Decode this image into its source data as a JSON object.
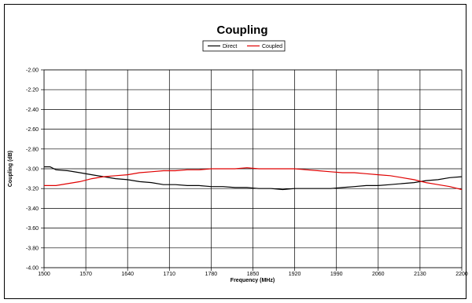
{
  "chart_data": {
    "type": "line",
    "title": "Coupling",
    "xlabel": "Frequency (MHz)",
    "ylabel": "Coupling (dB)",
    "xlim": [
      1500,
      2200
    ],
    "ylim": [
      -4.0,
      -2.0
    ],
    "x_ticks": [
      "1500",
      "1570",
      "1640",
      "1710",
      "1780",
      "1850",
      "1920",
      "1990",
      "2060",
      "2130",
      "2200"
    ],
    "y_ticks": [
      "-2.00",
      "-2.20",
      "-2.40",
      "-2.60",
      "-2.80",
      "-3.00",
      "-3.20",
      "-3.40",
      "-3.60",
      "-3.80",
      "-4.00"
    ],
    "grid": true,
    "legend_position": "top",
    "series": [
      {
        "name": "Direct",
        "color": "#000000",
        "points": [
          [
            1500,
            -2.98
          ],
          [
            1510,
            -2.98
          ],
          [
            1520,
            -3.01
          ],
          [
            1540,
            -3.02
          ],
          [
            1560,
            -3.04
          ],
          [
            1580,
            -3.06
          ],
          [
            1600,
            -3.08
          ],
          [
            1620,
            -3.1
          ],
          [
            1640,
            -3.11
          ],
          [
            1660,
            -3.13
          ],
          [
            1680,
            -3.14
          ],
          [
            1700,
            -3.16
          ],
          [
            1720,
            -3.16
          ],
          [
            1740,
            -3.17
          ],
          [
            1760,
            -3.17
          ],
          [
            1780,
            -3.18
          ],
          [
            1800,
            -3.18
          ],
          [
            1820,
            -3.19
          ],
          [
            1840,
            -3.19
          ],
          [
            1860,
            -3.2
          ],
          [
            1880,
            -3.2
          ],
          [
            1900,
            -3.21
          ],
          [
            1920,
            -3.2
          ],
          [
            1940,
            -3.2
          ],
          [
            1960,
            -3.2
          ],
          [
            1980,
            -3.2
          ],
          [
            2000,
            -3.19
          ],
          [
            2020,
            -3.18
          ],
          [
            2040,
            -3.17
          ],
          [
            2060,
            -3.17
          ],
          [
            2080,
            -3.16
          ],
          [
            2100,
            -3.15
          ],
          [
            2120,
            -3.14
          ],
          [
            2140,
            -3.12
          ],
          [
            2160,
            -3.11
          ],
          [
            2180,
            -3.09
          ],
          [
            2200,
            -3.08
          ]
        ]
      },
      {
        "name": "Coupled",
        "color": "#e00000",
        "points": [
          [
            1500,
            -3.17
          ],
          [
            1520,
            -3.17
          ],
          [
            1540,
            -3.15
          ],
          [
            1560,
            -3.13
          ],
          [
            1580,
            -3.1
          ],
          [
            1600,
            -3.08
          ],
          [
            1620,
            -3.07
          ],
          [
            1640,
            -3.06
          ],
          [
            1660,
            -3.04
          ],
          [
            1680,
            -3.03
          ],
          [
            1700,
            -3.02
          ],
          [
            1720,
            -3.02
          ],
          [
            1740,
            -3.01
          ],
          [
            1760,
            -3.01
          ],
          [
            1780,
            -3.0
          ],
          [
            1800,
            -3.0
          ],
          [
            1820,
            -3.0
          ],
          [
            1840,
            -2.99
          ],
          [
            1860,
            -3.0
          ],
          [
            1880,
            -3.0
          ],
          [
            1900,
            -3.0
          ],
          [
            1920,
            -3.0
          ],
          [
            1940,
            -3.01
          ],
          [
            1960,
            -3.02
          ],
          [
            1980,
            -3.03
          ],
          [
            2000,
            -3.04
          ],
          [
            2020,
            -3.04
          ],
          [
            2040,
            -3.05
          ],
          [
            2060,
            -3.06
          ],
          [
            2080,
            -3.07
          ],
          [
            2100,
            -3.09
          ],
          [
            2120,
            -3.11
          ],
          [
            2140,
            -3.14
          ],
          [
            2160,
            -3.16
          ],
          [
            2180,
            -3.18
          ],
          [
            2200,
            -3.21
          ]
        ]
      }
    ]
  }
}
